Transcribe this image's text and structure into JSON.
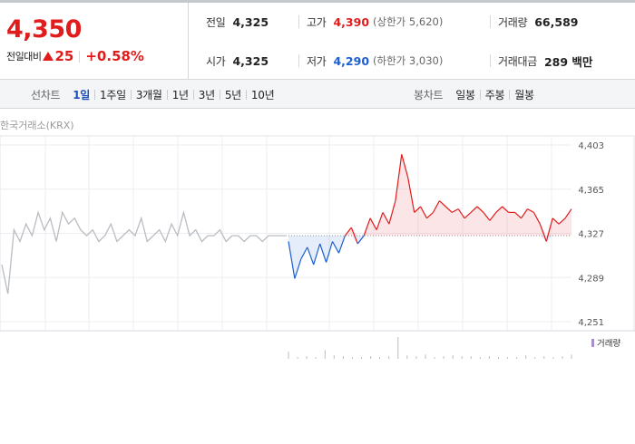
{
  "quote": {
    "price": "4,350",
    "change_label": "전일대비",
    "change": "25",
    "change_rate": "+0.58%"
  },
  "stats": {
    "prev_close": {
      "label": "전일",
      "value": "4,325"
    },
    "open": {
      "label": "시가",
      "value": "4,325"
    },
    "high": {
      "label": "고가",
      "value": "4,390",
      "limit": "(상한가 5,620)"
    },
    "low": {
      "label": "저가",
      "value": "4,290",
      "limit": "(하한가 3,030)"
    },
    "volume": {
      "label": "거래량",
      "value": "66,589"
    },
    "amount": {
      "label": "거래대금",
      "value": "289 백만"
    }
  },
  "tabs": {
    "line_chart_title": "선차트",
    "line_periods": [
      "1일",
      "1주일",
      "3개월",
      "1년",
      "3년",
      "5년",
      "10년"
    ],
    "candle_chart_title": "봉차트",
    "candle_periods": [
      "일봉",
      "주봉",
      "월봉"
    ]
  },
  "colors": {
    "up": "#e01c1c",
    "down": "#1c5fd0",
    "past": "#b9bcc2"
  },
  "chart_data": {
    "type": "line",
    "source": "한국거래소(KRX)",
    "legend": "거래량",
    "baseline": 4325,
    "ylim": [
      4251,
      4403
    ],
    "yticks": [
      "4,403",
      "4,365",
      "4,327",
      "4,289",
      "4,251"
    ],
    "previous_day": [
      4300,
      4275,
      4330,
      4320,
      4335,
      4325,
      4345,
      4330,
      4340,
      4320,
      4345,
      4335,
      4340,
      4330,
      4325,
      4330,
      4320,
      4325,
      4335,
      4320,
      4325,
      4330,
      4325,
      4340,
      4320,
      4325,
      4330,
      4320,
      4335,
      4325,
      4345,
      4325,
      4330,
      4320,
      4325,
      4325,
      4330,
      4320,
      4325,
      4325,
      4320,
      4325,
      4325,
      4320,
      4325,
      4325,
      4325,
      4325
    ],
    "today": [
      4320,
      4288,
      4305,
      4315,
      4300,
      4318,
      4302,
      4320,
      4310,
      4325,
      4332,
      4318,
      4325,
      4340,
      4330,
      4345,
      4335,
      4355,
      4395,
      4375,
      4345,
      4350,
      4340,
      4345,
      4355,
      4350,
      4345,
      4348,
      4340,
      4345,
      4350,
      4345,
      4338,
      4345,
      4350,
      4345,
      4345,
      4340,
      4348,
      4345,
      4335,
      4320,
      4340,
      4335,
      4340,
      4348
    ],
    "volume": [
      8,
      2,
      3,
      2,
      10,
      4,
      3,
      2,
      2,
      3,
      2,
      3,
      25,
      4,
      3,
      5,
      2,
      3,
      4,
      3,
      3,
      2,
      3,
      2,
      2,
      2,
      4,
      2,
      3,
      2,
      3,
      5
    ]
  }
}
